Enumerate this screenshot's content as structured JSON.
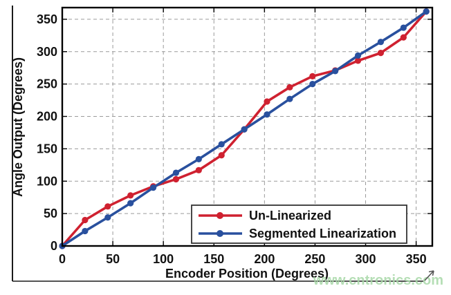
{
  "figure": {
    "watermark": "www.cntronics.com",
    "watermark_color": "#a9d9a9",
    "frame_color": "#1a1a1a",
    "grid_color": "#9a9a9a",
    "axis_color": "#000000"
  },
  "chart_data": {
    "type": "line",
    "title": "",
    "xlabel": "Encoder Position (Degrees)",
    "ylabel": "Angle Output (Degrees)",
    "xlim": [
      0,
      366
    ],
    "ylim": [
      0,
      368
    ],
    "xticks": [
      0,
      50,
      100,
      150,
      200,
      250,
      300,
      350
    ],
    "yticks": [
      0,
      50,
      100,
      150,
      200,
      250,
      300,
      350
    ],
    "grid": true,
    "legend_position": "bottom-right",
    "x": [
      0,
      22.5,
      45,
      67.5,
      90,
      112.5,
      135,
      157.5,
      180,
      202.5,
      225,
      247.5,
      270,
      292.5,
      315,
      337.5,
      360
    ],
    "series": [
      {
        "name": "Un-Linearized",
        "color": "#cf2130",
        "marker": "circle",
        "values": [
          0,
          40,
          61,
          78,
          92,
          103,
          117,
          140,
          180,
          223,
          245,
          262,
          271,
          286,
          298,
          322,
          362
        ]
      },
      {
        "name": "Segmented Linearization",
        "color": "#29509e",
        "marker": "circle",
        "values": [
          0,
          23,
          44,
          66,
          90,
          113,
          134,
          157,
          180,
          203,
          227,
          250,
          270,
          294,
          315,
          337,
          362
        ]
      }
    ]
  }
}
